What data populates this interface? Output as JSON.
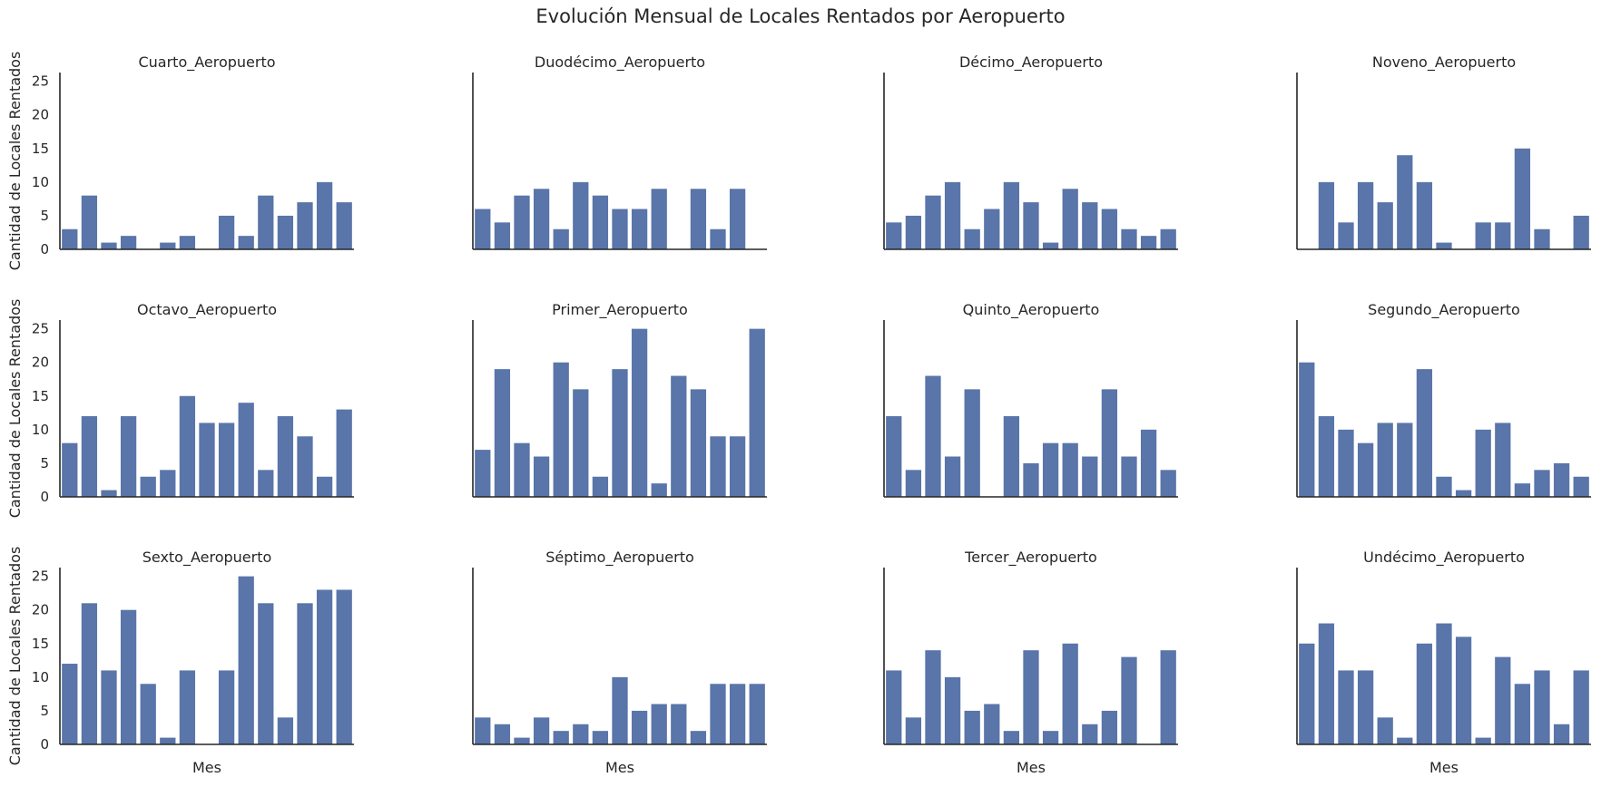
{
  "title": "Evolución Mensual de Locales Rentados por Aeropuerto",
  "colors": {
    "bar": "#5975a9",
    "axis": "#262626"
  },
  "chart_data": {
    "type": "bar",
    "title": "Evolución Mensual de Locales Rentados por Aeropuerto",
    "xlabel": "Mes",
    "ylabel": "Cantidad de Locales Rentados",
    "ylim": [
      0,
      26.3
    ],
    "yticks": [
      0,
      5,
      10,
      15,
      20,
      25
    ],
    "x_tick_labels_shown": false,
    "grid": false,
    "n_slots": 15,
    "panels": [
      {
        "name": "Cuarto_Aeropuerto",
        "values": [
          3,
          8,
          1,
          2,
          0,
          1,
          2,
          0,
          5,
          2,
          8,
          5,
          7,
          10,
          7
        ]
      },
      {
        "name": "Duodécimo_Aeropuerto",
        "values": [
          6,
          4,
          8,
          9,
          3,
          10,
          8,
          6,
          6,
          9,
          0,
          9,
          3,
          9,
          null
        ]
      },
      {
        "name": "Décimo_Aeropuerto",
        "values": [
          4,
          5,
          8,
          10,
          3,
          6,
          10,
          7,
          1,
          9,
          7,
          6,
          3,
          2,
          3
        ]
      },
      {
        "name": "Noveno_Aeropuerto",
        "values": [
          0,
          10,
          4,
          10,
          7,
          14,
          10,
          1,
          0,
          4,
          4,
          15,
          3,
          0,
          5
        ]
      },
      {
        "name": "Octavo_Aeropuerto",
        "values": [
          8,
          12,
          1,
          12,
          3,
          4,
          15,
          11,
          11,
          14,
          4,
          12,
          9,
          3,
          13
        ]
      },
      {
        "name": "Primer_Aeropuerto",
        "values": [
          7,
          19,
          8,
          6,
          20,
          16,
          3,
          19,
          25,
          2,
          18,
          16,
          9,
          9,
          25
        ]
      },
      {
        "name": "Quinto_Aeropuerto",
        "values": [
          12,
          4,
          18,
          6,
          16,
          0,
          12,
          5,
          8,
          8,
          6,
          16,
          6,
          10,
          4
        ]
      },
      {
        "name": "Segundo_Aeropuerto",
        "values": [
          20,
          12,
          10,
          8,
          11,
          11,
          19,
          3,
          1,
          10,
          11,
          2,
          4,
          5,
          3
        ]
      },
      {
        "name": "Sexto_Aeropuerto",
        "values": [
          12,
          21,
          11,
          20,
          9,
          1,
          11,
          0,
          11,
          25,
          21,
          4,
          21,
          23,
          23
        ]
      },
      {
        "name": "Séptimo_Aeropuerto",
        "values": [
          4,
          3,
          1,
          4,
          2,
          3,
          2,
          10,
          5,
          6,
          6,
          2,
          9,
          9,
          9
        ]
      },
      {
        "name": "Tercer_Aeropuerto",
        "values": [
          11,
          4,
          14,
          10,
          5,
          6,
          2,
          14,
          2,
          15,
          3,
          5,
          13,
          0,
          14
        ]
      },
      {
        "name": "Undécimo_Aeropuerto",
        "values": [
          15,
          18,
          11,
          11,
          4,
          1,
          15,
          18,
          16,
          1,
          13,
          9,
          11,
          3,
          11
        ]
      }
    ]
  }
}
